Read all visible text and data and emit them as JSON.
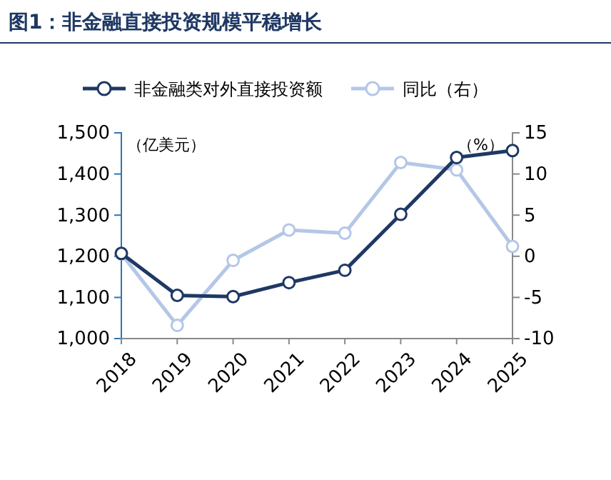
{
  "chart_data": {
    "type": "line",
    "title": "图1：非金融直接投资规模平稳增长",
    "categories": [
      "2018",
      "2019",
      "2020",
      "2021",
      "2022",
      "2023",
      "2024",
      "2025"
    ],
    "series": [
      {
        "name": "非金融类对外直接投资额",
        "color": "#1f3864",
        "values": [
          1207,
          1105,
          1102,
          1136,
          1166,
          1302,
          1440,
          1457
        ]
      },
      {
        "name": "同比（右）",
        "color": "#b4c7e7",
        "axis": "y2",
        "values": [
          0.3,
          -8.4,
          -0.5,
          3.2,
          2.8,
          11.4,
          10.5,
          1.2
        ]
      }
    ],
    "ylabel": "（亿美元）",
    "y2label": "（%）",
    "ylim": [
      1000,
      1500
    ],
    "yticks": [
      {
        "value": 1000,
        "label": "1,000"
      },
      {
        "value": 1100,
        "label": "1,100"
      },
      {
        "value": 1200,
        "label": "1,200"
      },
      {
        "value": 1300,
        "label": "1,300"
      },
      {
        "value": 1400,
        "label": "1,400"
      },
      {
        "value": 1500,
        "label": "1,500"
      }
    ],
    "y2lim": [
      -10,
      15
    ],
    "y2ticks": [
      -10,
      -5,
      0,
      5,
      10,
      15
    ],
    "legend": "top",
    "marker": "circle",
    "line_style": "solid",
    "grid": false
  }
}
